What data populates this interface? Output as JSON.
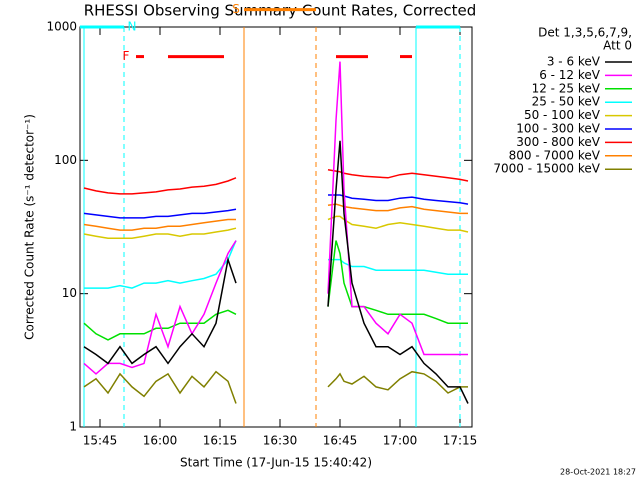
{
  "chart_data": {
    "type": "line",
    "title": "RHESSI Observing Summary Count Rates, Corrected",
    "x_label": "Start Time (17-Jun-15 15:40:42)",
    "y_label": "Corrected Count Rate (s⁻¹ detector⁻¹)",
    "footer": "28-Oct-2021 18:27",
    "legend_header": [
      "Det 1,3,5,6,7,9,",
      "Att 0"
    ],
    "legend": "upper right outside",
    "log_y": true,
    "ylim": [
      1,
      1000
    ],
    "yticks": [
      1,
      10,
      100,
      1000
    ],
    "xlim": [
      "15:40",
      "17:18"
    ],
    "xticks": [
      "15:45",
      "16:00",
      "16:15",
      "16:30",
      "16:45",
      "17:00",
      "17:15"
    ],
    "x": [
      "15:41",
      "15:44",
      "15:47",
      "15:50",
      "15:53",
      "15:56",
      "15:59",
      "16:02",
      "16:05",
      "16:08",
      "16:11",
      "16:14",
      "16:17",
      "16:19",
      "16:30",
      "16:42",
      "16:44",
      "16:45",
      "16:46",
      "16:48",
      "16:51",
      "16:54",
      "16:57",
      "17:00",
      "17:03",
      "17:06",
      "17:09",
      "17:12",
      "17:15",
      "17:17"
    ],
    "series": [
      {
        "name": "3 - 6 keV",
        "color": "#000000",
        "values": [
          4,
          3.5,
          3,
          4,
          3,
          3.5,
          4,
          3,
          4,
          5,
          4,
          6,
          18,
          12,
          null,
          8,
          60,
          140,
          40,
          12,
          6,
          4,
          4,
          3.5,
          4,
          3,
          2.5,
          2,
          2,
          1.5
        ]
      },
      {
        "name": "6 - 12 keV",
        "color": "#ff00ff",
        "values": [
          3,
          2.5,
          3,
          3,
          2.8,
          3,
          7,
          4,
          8,
          5,
          7,
          12,
          20,
          25,
          null,
          10,
          200,
          550,
          60,
          8,
          8,
          6,
          5,
          7,
          6,
          3.5,
          3.5,
          3.5,
          3.5,
          3.5
        ]
      },
      {
        "name": "12 - 25 keV",
        "color": "#00e000",
        "values": [
          6,
          5,
          4.5,
          5,
          5,
          5,
          5.5,
          5.5,
          6,
          6,
          6,
          7,
          7.5,
          7,
          null,
          8,
          25,
          20,
          12,
          8,
          8,
          7.5,
          7,
          7,
          7,
          7,
          6.5,
          6,
          6,
          6
        ]
      },
      {
        "name": "25 - 50 keV",
        "color": "#00ffff",
        "values": [
          11,
          11,
          11,
          11.5,
          11,
          12,
          12,
          12.5,
          12,
          12.5,
          13,
          14,
          18,
          25,
          null,
          18,
          18,
          18,
          17,
          16,
          16,
          15,
          15,
          15,
          15,
          15,
          14.5,
          14,
          14,
          14
        ]
      },
      {
        "name": "50 - 100 keV",
        "color": "#d8c800",
        "values": [
          28,
          27,
          26,
          26,
          26,
          27,
          28,
          28,
          27,
          28,
          28,
          29,
          30,
          31,
          null,
          36,
          38,
          38,
          36,
          33,
          32,
          31,
          33,
          34,
          33,
          32,
          31,
          30,
          30,
          29
        ]
      },
      {
        "name": "100 - 300 keV",
        "color": "#0000ff",
        "values": [
          40,
          39,
          38,
          37,
          37,
          37,
          38,
          38,
          39,
          40,
          40,
          41,
          42,
          43,
          null,
          55,
          55,
          55,
          54,
          52,
          51,
          50,
          50,
          52,
          53,
          51,
          50,
          49,
          48,
          47
        ]
      },
      {
        "name": "300 - 800 keV",
        "color": "#ff0000",
        "values": [
          62,
          59,
          57,
          56,
          56,
          57,
          58,
          60,
          61,
          63,
          64,
          66,
          70,
          74,
          null,
          85,
          83,
          82,
          80,
          78,
          76,
          75,
          74,
          78,
          80,
          78,
          76,
          74,
          72,
          70
        ]
      },
      {
        "name": "800 - 7000 keV",
        "color": "#ff8000",
        "values": [
          33,
          32,
          31,
          30,
          30,
          31,
          31,
          32,
          32,
          33,
          34,
          35,
          36,
          36,
          null,
          46,
          47,
          46,
          45,
          44,
          43,
          42,
          42,
          44,
          45,
          43,
          42,
          41,
          40,
          40
        ]
      },
      {
        "name": "7000 - 15000 keV",
        "color": "#808000",
        "values": [
          2,
          2.3,
          1.8,
          2.5,
          2,
          1.7,
          2.2,
          2.5,
          1.8,
          2.4,
          2,
          2.6,
          2.2,
          1.5,
          null,
          2,
          2.3,
          2.5,
          2.2,
          2.1,
          2.4,
          2,
          1.9,
          2.3,
          2.6,
          2.5,
          2.2,
          1.8,
          2,
          2
        ]
      }
    ],
    "flags": [
      {
        "label": "N",
        "color": "#00ffff",
        "level": 1000,
        "spans": [
          [
            "15:40",
            "15:51"
          ],
          [
            "17:04",
            "17:15"
          ]
        ]
      },
      {
        "label": "F",
        "color": "#ff0000",
        "level": 600,
        "spans": [
          [
            "15:54",
            "15:56"
          ],
          [
            "16:02",
            "16:16"
          ],
          [
            "16:44",
            "16:52"
          ],
          [
            "17:00",
            "17:03"
          ]
        ]
      },
      {
        "label": "S",
        "color": "#ff8000",
        "level": 1350,
        "spans": [
          [
            "16:21",
            "16:39"
          ]
        ]
      }
    ],
    "markers": [
      {
        "x": "15:41",
        "color": "#00ffff",
        "dashed": false
      },
      {
        "x": "15:51",
        "color": "#00ffff",
        "dashed": true
      },
      {
        "x": "16:21",
        "color": "#ff8000",
        "dashed": false
      },
      {
        "x": "16:39",
        "color": "#ff8000",
        "dashed": true
      },
      {
        "x": "17:04",
        "color": "#00ffff",
        "dashed": false
      },
      {
        "x": "17:15",
        "color": "#00ffff",
        "dashed": true
      }
    ]
  }
}
